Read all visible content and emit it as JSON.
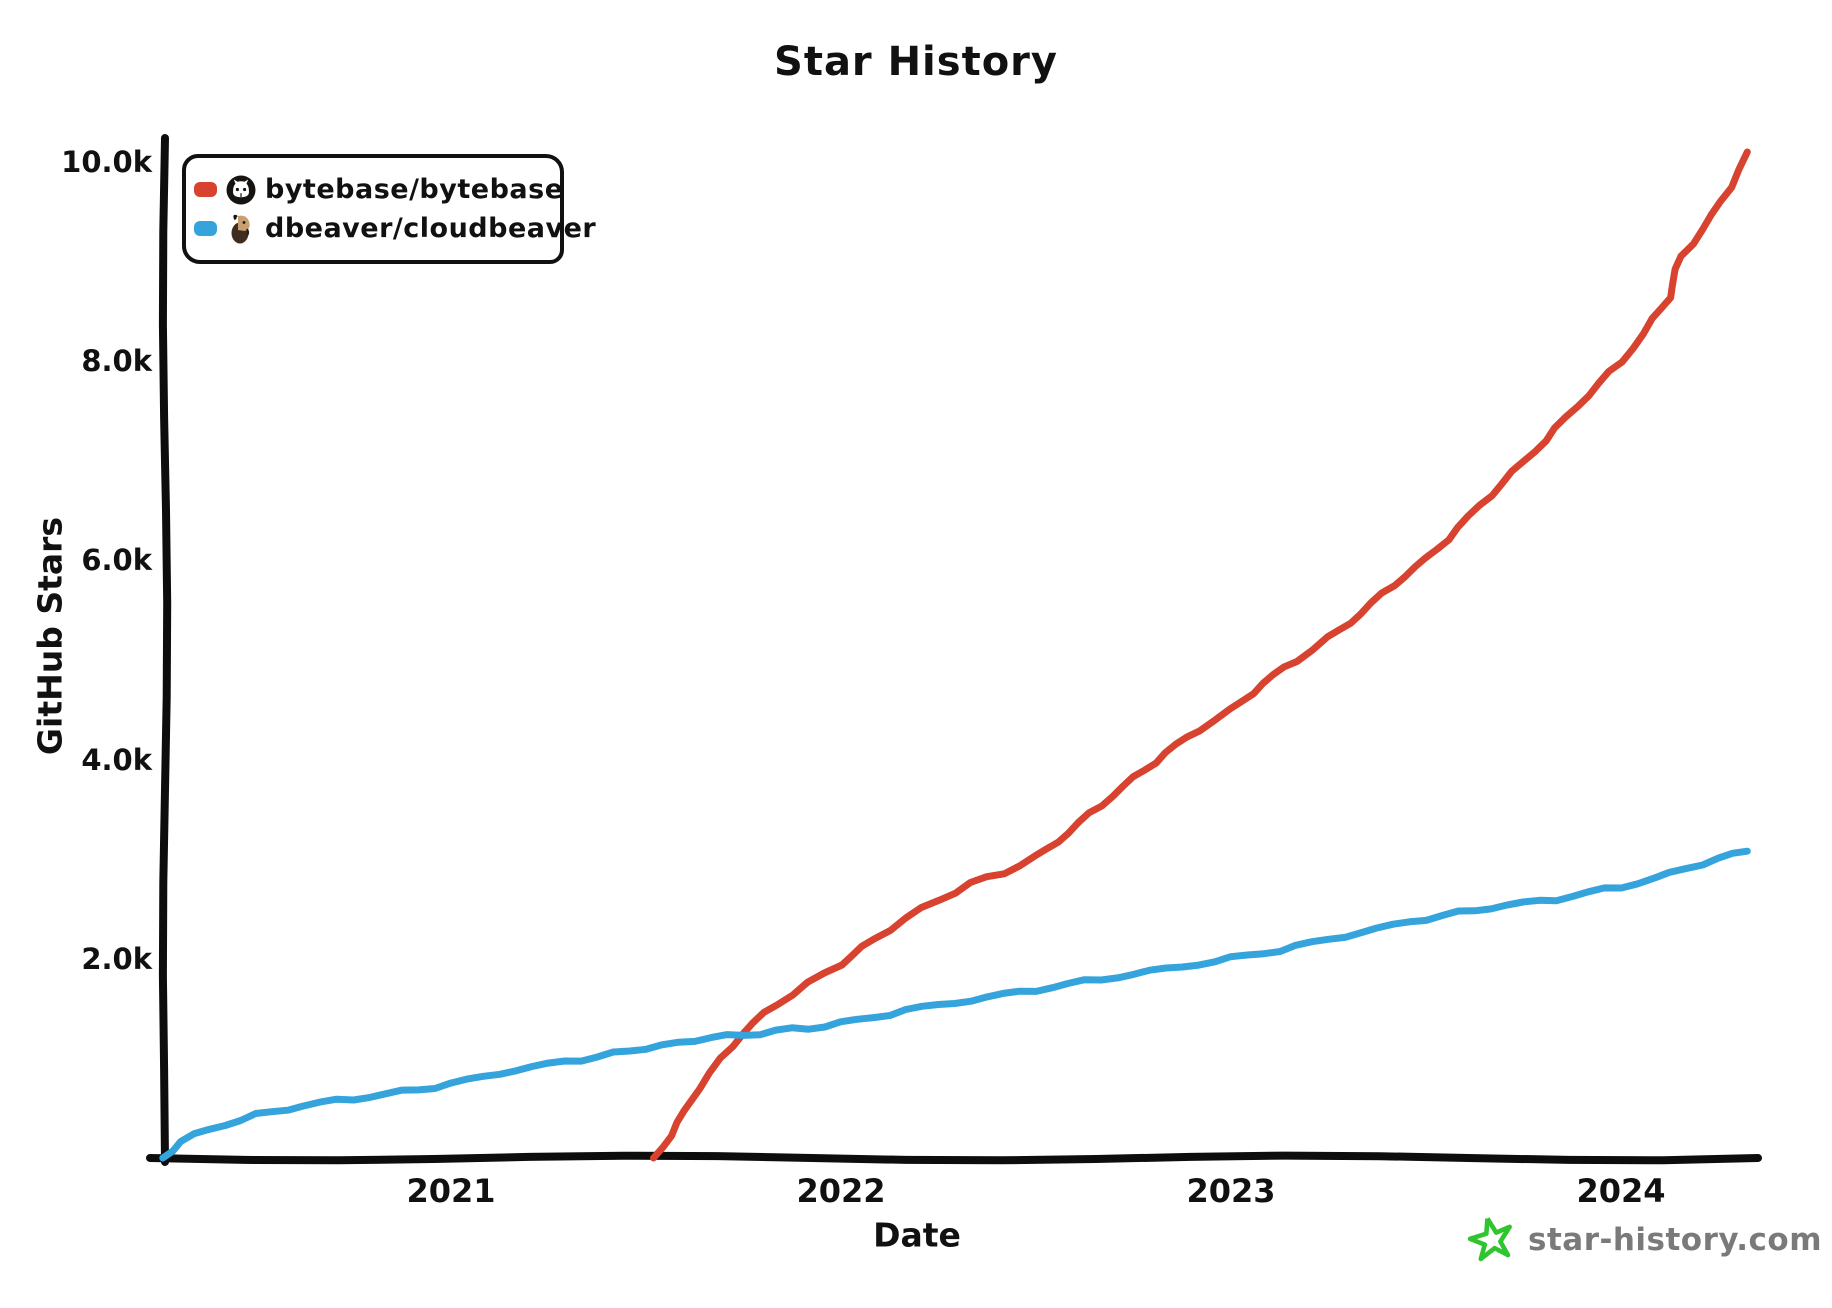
{
  "title": "Star History",
  "legend": {
    "items": [
      {
        "repo": "bytebase/bytebase",
        "color": "#d7432e",
        "avatar": "github-octocat-avatar"
      },
      {
        "repo": "dbeaver/cloudbeaver",
        "color": "#35a3dc",
        "avatar": "beaver-avatar"
      }
    ]
  },
  "watermark": {
    "text": "star-history.com",
    "star_color": "#2fc52f",
    "text_color": "#7a7a7a"
  },
  "chart_data": {
    "type": "line",
    "title": "Star History",
    "xlabel": "Date",
    "ylabel": "GitHub Stars",
    "style": "xkcd-hand-drawn",
    "grid": false,
    "legend_position": "upper-left",
    "xlim": [
      "2020-04",
      "2024-05"
    ],
    "ylim": [
      0,
      10000
    ],
    "x_ticks": [
      2021,
      2022,
      2023,
      2024
    ],
    "y_ticks": [
      {
        "label": "2.0k",
        "value": 2000
      },
      {
        "label": "4.0k",
        "value": 4000
      },
      {
        "label": "6.0k",
        "value": 6000
      },
      {
        "label": "8.0k",
        "value": 8000
      },
      {
        "label": "10.0k",
        "value": 10000
      }
    ],
    "series": [
      {
        "name": "bytebase/bytebase",
        "color": "#d7432e",
        "points": [
          [
            "2021-07-08",
            0
          ],
          [
            "2021-08-01",
            350
          ],
          [
            "2021-08-20",
            700
          ],
          [
            "2021-09-10",
            1000
          ],
          [
            "2021-10-01",
            1250
          ],
          [
            "2021-11-01",
            1550
          ],
          [
            "2021-12-01",
            1750
          ],
          [
            "2022-01-01",
            1950
          ],
          [
            "2022-02-01",
            2200
          ],
          [
            "2022-03-01",
            2400
          ],
          [
            "2022-04-01",
            2600
          ],
          [
            "2022-05-01",
            2750
          ],
          [
            "2022-06-01",
            2870
          ],
          [
            "2022-07-01",
            3020
          ],
          [
            "2022-08-01",
            3260
          ],
          [
            "2022-09-01",
            3550
          ],
          [
            "2022-10-01",
            3820
          ],
          [
            "2022-11-01",
            4060
          ],
          [
            "2022-12-01",
            4300
          ],
          [
            "2023-01-01",
            4500
          ],
          [
            "2023-02-01",
            4760
          ],
          [
            "2023-03-01",
            5000
          ],
          [
            "2023-04-01",
            5220
          ],
          [
            "2023-05-01",
            5460
          ],
          [
            "2023-06-01",
            5760
          ],
          [
            "2023-07-01",
            6020
          ],
          [
            "2023-08-01",
            6320
          ],
          [
            "2023-09-01",
            6660
          ],
          [
            "2023-10-01",
            7000
          ],
          [
            "2023-11-01",
            7320
          ],
          [
            "2023-12-01",
            7660
          ],
          [
            "2024-01-01",
            8000
          ],
          [
            "2024-02-01",
            8420
          ],
          [
            "2024-02-16",
            8640
          ],
          [
            "2024-02-26",
            9060
          ],
          [
            "2024-03-18",
            9320
          ],
          [
            "2024-04-12",
            9750
          ],
          [
            "2024-04-28",
            10100
          ]
        ]
      },
      {
        "name": "dbeaver/cloudbeaver",
        "color": "#35a3dc",
        "points": [
          [
            "2020-04-05",
            0
          ],
          [
            "2020-04-22",
            160
          ],
          [
            "2020-05-18",
            300
          ],
          [
            "2020-07-01",
            430
          ],
          [
            "2020-08-15",
            520
          ],
          [
            "2020-10-01",
            600
          ],
          [
            "2020-12-01",
            690
          ],
          [
            "2021-01-01",
            740
          ],
          [
            "2021-03-01",
            880
          ],
          [
            "2021-05-01",
            990
          ],
          [
            "2021-06-01",
            1050
          ],
          [
            "2021-07-01",
            1100
          ],
          [
            "2021-08-01",
            1160
          ],
          [
            "2021-09-01",
            1205
          ],
          [
            "2021-10-01",
            1240
          ],
          [
            "2021-11-01",
            1270
          ],
          [
            "2021-12-01",
            1310
          ],
          [
            "2022-01-01",
            1350
          ],
          [
            "2022-03-01",
            1480
          ],
          [
            "2022-05-01",
            1580
          ],
          [
            "2022-07-01",
            1690
          ],
          [
            "2022-09-01",
            1800
          ],
          [
            "2022-11-01",
            1905
          ],
          [
            "2023-01-01",
            2005
          ],
          [
            "2023-03-01",
            2120
          ],
          [
            "2023-05-01",
            2260
          ],
          [
            "2023-07-01",
            2400
          ],
          [
            "2023-08-01",
            2470
          ],
          [
            "2023-09-01",
            2505
          ],
          [
            "2023-11-01",
            2600
          ],
          [
            "2024-01-01",
            2725
          ],
          [
            "2024-03-01",
            2905
          ],
          [
            "2024-04-01",
            3005
          ],
          [
            "2024-04-28",
            3080
          ]
        ]
      }
    ]
  }
}
